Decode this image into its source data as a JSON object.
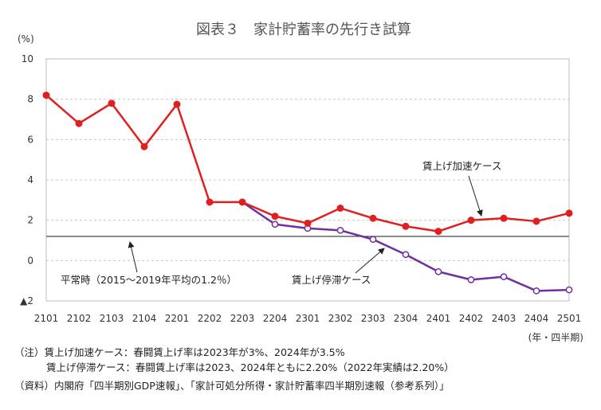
{
  "chart_data": {
    "type": "line",
    "title": "図表３　家計貯蓄率の先行き試算",
    "ylabel": "(%)",
    "xlabel": "(年・四半期)",
    "ylim": [
      -2,
      10
    ],
    "yticks": [
      10,
      8,
      6,
      4,
      2,
      0,
      -2
    ],
    "ytick_labels": [
      "10",
      "8",
      "6",
      "4",
      "2",
      "0",
      "▲2"
    ],
    "grid": true,
    "categories": [
      "2101",
      "2102",
      "2103",
      "2104",
      "2201",
      "2202",
      "2203",
      "2204",
      "2301",
      "2302",
      "2303",
      "2304",
      "2401",
      "2402",
      "2403",
      "2404",
      "2501"
    ],
    "series": [
      {
        "name": "賃上げ加速ケース",
        "color": "#e02020",
        "marker": "filled",
        "values": [
          8.2,
          6.8,
          7.8,
          5.65,
          7.75,
          2.9,
          2.9,
          2.2,
          1.85,
          2.6,
          2.1,
          1.7,
          1.45,
          2.0,
          2.1,
          1.95,
          2.35
        ]
      },
      {
        "name": "賃上げ停滞ケース",
        "color": "#7030a0",
        "marker": "hollow",
        "values": [
          null,
          null,
          null,
          null,
          null,
          null,
          2.9,
          1.8,
          1.6,
          1.5,
          1.05,
          0.3,
          -0.55,
          -0.95,
          -0.8,
          -1.5,
          -1.45
        ]
      }
    ],
    "reference_line": {
      "label": "平常時（2015～2019年平均の1.2％）",
      "value": 1.2,
      "color": "#333333"
    },
    "annotations": {
      "accel": "賃上げ加速ケース",
      "stagnant": "賃上げ停滞ケース",
      "normal": "平常時（2015～2019年平均の1.2％）"
    }
  },
  "notes": {
    "line1": "（注）賃上げ加速ケース：春闘賃上げ率は2023年が3%、2024年が3.5%",
    "line2": "賃上げ停滞ケース：春闘賃上げ率は2023、2024年ともに2.20%（2022年実績は2.20%）",
    "line3": "（資料）内閣府「四半期別GDP速報」、「家計可処分所得・家計貯蓄率四半期別速報（参考系列）」"
  }
}
